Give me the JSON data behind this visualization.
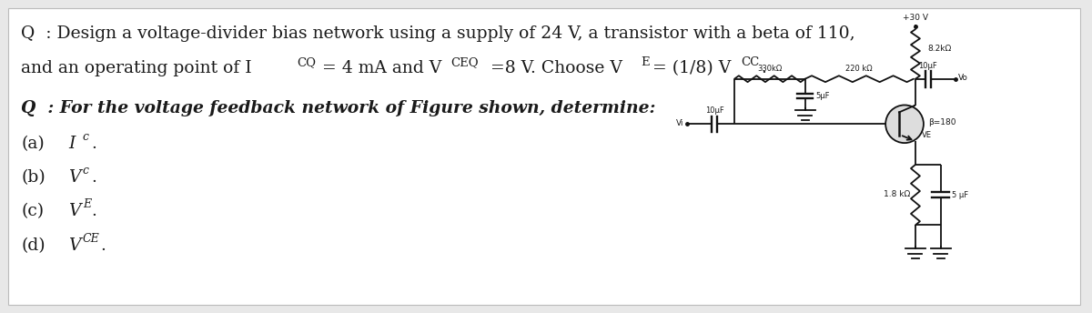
{
  "bg_color": "#e8e8e8",
  "white_bg": "#ffffff",
  "text_color": "#1a1a1a",
  "fig_width": 12.0,
  "fig_height": 3.44,
  "dpi": 100,
  "font_size_main": 13.5,
  "lw": 1.3,
  "cc": "#111111",
  "q1_line1": "Q  : Design a voltage-divider bias network using a supply of 24 V, a transistor with a beta of 110,",
  "q1_line2_pre": "and an operating point of I",
  "q1_sub1": "CQ",
  "q1_mid1": "= 4 mA and V",
  "q1_sub2": "CEQ",
  "q1_mid2": " =8 V. Choose V",
  "q1_sub3": "E",
  "q1_mid3": "= (1/8) V",
  "q1_sub4": "CC",
  "q1_end": ".",
  "q2_line": "Q  : For the voltage feedback network of Figure shown, determine:",
  "items_prefix": [
    "(a)",
    "(b)",
    "(c)",
    "(d)"
  ],
  "items_letter": [
    "I",
    "V",
    "V",
    "V"
  ],
  "items_subscript": [
    "c",
    "c",
    "E",
    "CE"
  ],
  "supply_label": "+30 V",
  "rc_label": "8.2kΩ",
  "r330_label": "330kΩ",
  "r220_label": "220 kΩ",
  "re_label": "1.8 kΩ",
  "cap_in_label": "10µF",
  "cap_out_label": "10µF",
  "cap5_label": "5µF",
  "cap_byp_label": "5 µF",
  "beta_label": "β=180",
  "vo_label": "Vo",
  "vi_label": "Vi",
  "ve_label": "VE"
}
